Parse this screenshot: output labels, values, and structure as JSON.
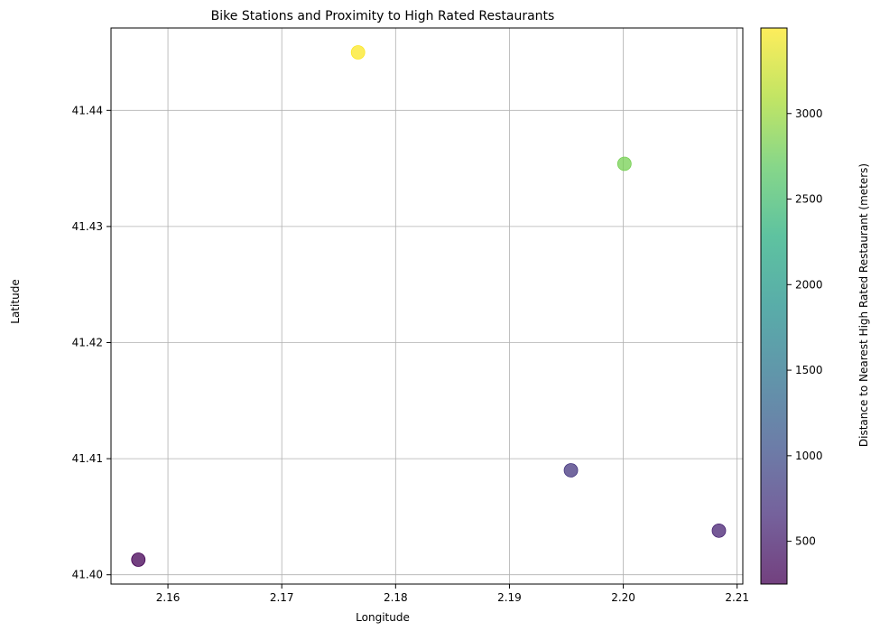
{
  "chart_data": {
    "type": "scatter",
    "title": "Bike Stations and Proximity to High Rated Restaurants",
    "xlabel": "Longitude",
    "ylabel": "Latitude",
    "xlim": [
      2.155,
      2.2105
    ],
    "ylim": [
      41.3992,
      41.4471
    ],
    "xticks": [
      2.16,
      2.17,
      2.18,
      2.19,
      2.2,
      2.21
    ],
    "xtick_labels": [
      "2.16",
      "2.17",
      "2.18",
      "2.19",
      "2.20",
      "2.21"
    ],
    "yticks": [
      41.4,
      41.41,
      41.42,
      41.43,
      41.44
    ],
    "ytick_labels": [
      "41.40",
      "41.41",
      "41.42",
      "41.43",
      "41.44"
    ],
    "grid": true,
    "points": [
      {
        "x": 2.1574,
        "y": 41.4013,
        "distance": 260
      },
      {
        "x": 2.1767,
        "y": 41.445,
        "distance": 3490
      },
      {
        "x": 2.2001,
        "y": 41.4354,
        "distance": 2820
      },
      {
        "x": 2.1954,
        "y": 41.409,
        "distance": 760
      },
      {
        "x": 2.2084,
        "y": 41.4038,
        "distance": 560
      }
    ],
    "colorbar": {
      "label": "Distance to Nearest High Rated Restaurant (meters)",
      "colormap": "viridis",
      "alpha": 0.75,
      "range": [
        250,
        3500
      ],
      "ticks": [
        500,
        1000,
        1500,
        2000,
        2500,
        3000
      ],
      "tick_labels": [
        "500",
        "1000",
        "1500",
        "2000",
        "2500",
        "3000"
      ]
    }
  }
}
